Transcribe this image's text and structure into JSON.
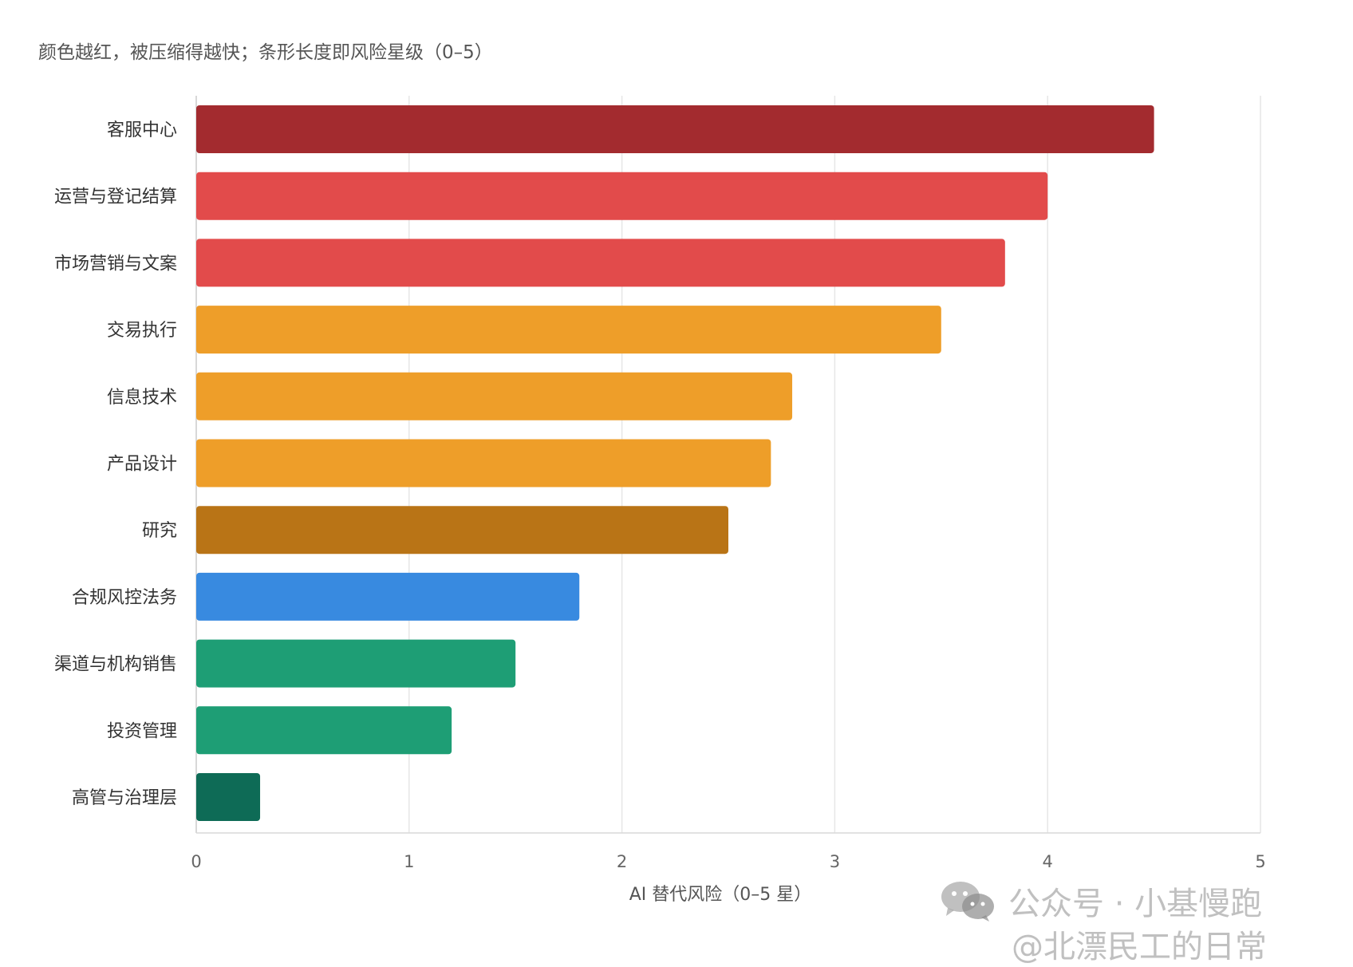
{
  "chart_data": {
    "type": "bar",
    "orientation": "horizontal",
    "subtitle": "颜色越红，被压缩得越快；条形长度即风险星级（0–5）",
    "xlabel": "AI 替代风险（0–5 星）",
    "xlim": [
      0,
      5
    ],
    "xticks": [
      0,
      1,
      2,
      3,
      4,
      5
    ],
    "grid": true,
    "categories": [
      "客服中心",
      "运营与登记结算",
      "市场营销与文案",
      "交易执行",
      "信息技术",
      "产品设计",
      "研究",
      "合规风控法务",
      "渠道与机构销售",
      "投资管理",
      "高管与治理层"
    ],
    "values": [
      4.5,
      4.0,
      3.8,
      3.5,
      2.8,
      2.7,
      2.5,
      1.8,
      1.5,
      1.2,
      0.3
    ],
    "colors": [
      "#A32B2F",
      "#E24B4B",
      "#E24B4B",
      "#EE9E29",
      "#EE9E29",
      "#EE9E29",
      "#B97416",
      "#388AE0",
      "#1E9E75",
      "#1E9E75",
      "#0E6B56"
    ]
  },
  "watermark": {
    "line1": "公众号 · 小基慢跑",
    "line2": "@北漂民工的日常",
    "icon": "wechat-icon"
  }
}
